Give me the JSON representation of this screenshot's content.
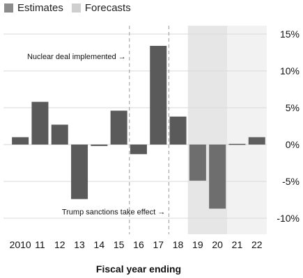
{
  "legend": [
    {
      "label": "Estimates",
      "color": "#8c8c8c"
    },
    {
      "label": "Forecasts",
      "color": "#cfcfcf"
    }
  ],
  "colors": {
    "actual_bar": "#5a5a5a",
    "estimate_bar": "#6e6e6e",
    "forecast_bar": "#5f5f5f",
    "estimate_band": "#e6e6e6",
    "forecast_band": "#f2f2f2",
    "grid": "#d9d9d9"
  },
  "chart_data": {
    "type": "bar",
    "title": "",
    "xlabel": "Fiscal year ending",
    "ylabel": "",
    "categories": [
      "2010",
      "11",
      "12",
      "13",
      "14",
      "15",
      "16",
      "17",
      "18",
      "19",
      "20",
      "21",
      "22"
    ],
    "values": [
      1.0,
      5.8,
      2.7,
      -7.4,
      -0.2,
      4.6,
      -1.3,
      13.4,
      3.8,
      -4.9,
      -8.7,
      0.1,
      1.0
    ],
    "status": [
      "actual",
      "actual",
      "actual",
      "actual",
      "actual",
      "actual",
      "actual",
      "actual",
      "actual",
      "estimate",
      "estimate",
      "forecast",
      "forecast"
    ],
    "ylim": [
      -12,
      16
    ],
    "yticks": [
      15,
      10,
      5,
      0,
      -5,
      -10
    ],
    "ytick_labels": [
      "15%",
      "10%",
      "5%",
      "0%",
      "-5%",
      "-10%"
    ],
    "y_axis_side": "right",
    "grid": true,
    "legend_position": "top-left",
    "annotations": [
      {
        "text": "Nuclear deal implemented →",
        "year": "16",
        "y": 12.0
      },
      {
        "text": "Trump sanctions take effect →",
        "year": "18",
        "y": -9.1
      }
    ]
  }
}
